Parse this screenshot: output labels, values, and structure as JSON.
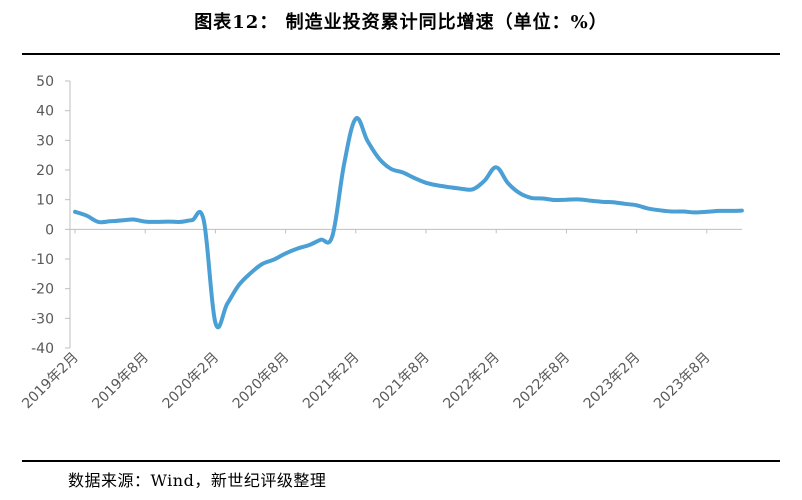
{
  "header": {
    "title": "图表12： 制造业投资累计同比增速（单位：%）"
  },
  "footer": {
    "source": "数据来源：Wind，新世纪评级整理"
  },
  "colors": {
    "series": "#4a9fd4",
    "axis": "#bfbfbf",
    "text": "#595959"
  },
  "chart_data": {
    "type": "line",
    "title": "图表12： 制造业投资累计同比增速（单位：%）",
    "xlabel": "",
    "ylabel": "",
    "ylim": [
      -40,
      50
    ],
    "yticks": [
      "50",
      "40",
      "30",
      "20",
      "10",
      "0",
      "-10",
      "-20",
      "-30",
      "-40"
    ],
    "xtick_labels": [
      "2019年2月",
      "2019年8月",
      "2020年2月",
      "2020年8月",
      "2021年2月",
      "2021年8月",
      "2022年2月",
      "2022年8月",
      "2023年2月",
      "2023年8月"
    ],
    "grid": false,
    "legend": "none",
    "x": [
      "2019-02",
      "2019-03",
      "2019-04",
      "2019-05",
      "2019-06",
      "2019-07",
      "2019-08",
      "2019-09",
      "2019-10",
      "2019-11",
      "2019-12",
      "2020-01",
      "2020-02",
      "2020-03",
      "2020-04",
      "2020-05",
      "2020-06",
      "2020-07",
      "2020-08",
      "2020-09",
      "2020-10",
      "2020-11",
      "2020-12",
      "2021-01",
      "2021-02",
      "2021-03",
      "2021-04",
      "2021-05",
      "2021-06",
      "2021-07",
      "2021-08",
      "2021-09",
      "2021-10",
      "2021-11",
      "2021-12",
      "2022-01",
      "2022-02",
      "2022-03",
      "2022-04",
      "2022-05",
      "2022-06",
      "2022-07",
      "2022-08",
      "2022-09",
      "2022-10",
      "2022-11",
      "2022-12",
      "2023-01",
      "2023-02",
      "2023-03",
      "2023-04",
      "2023-05",
      "2023-06",
      "2023-07",
      "2023-08",
      "2023-09",
      "2023-10",
      "2023-11"
    ],
    "series": [
      {
        "values": [
          5.9,
          4.6,
          2.5,
          2.7,
          3.0,
          3.3,
          2.6,
          2.5,
          2.6,
          2.5,
          3.1,
          3.1,
          -31.5,
          -25.2,
          -18.8,
          -14.8,
          -11.7,
          -10.2,
          -8.1,
          -6.5,
          -5.3,
          -3.5,
          -2.2,
          22.0,
          37.3,
          29.8,
          23.8,
          20.4,
          19.2,
          17.3,
          15.7,
          14.8,
          14.2,
          13.7,
          13.5,
          16.4,
          20.9,
          15.6,
          12.2,
          10.6,
          10.4,
          9.9,
          10.0,
          10.1,
          9.7,
          9.3,
          9.1,
          8.6,
          8.1,
          7.0,
          6.4,
          6.0,
          6.0,
          5.7,
          5.9,
          6.2,
          6.2,
          6.3
        ]
      }
    ]
  }
}
